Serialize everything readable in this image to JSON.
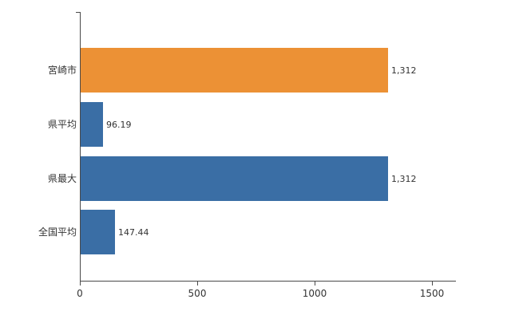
{
  "chart_data": {
    "type": "bar",
    "orientation": "horizontal",
    "title": "",
    "xlabel": "",
    "ylabel": "",
    "categories": [
      "宮崎市",
      "県平均",
      "県最大",
      "全国平均"
    ],
    "values": [
      1312,
      96.19,
      1312,
      147.44
    ],
    "value_labels": [
      "1,312",
      "96.19",
      "1,312",
      "147.44"
    ],
    "bar_colors": [
      "#EC9135",
      "#3A6EA5",
      "#3A6EA5",
      "#3A6EA5"
    ],
    "xlim": [
      0,
      1600
    ],
    "x_ticks": [
      0,
      500,
      1000,
      1500
    ],
    "x_tick_labels": [
      "0",
      "500",
      "1000",
      "1500"
    ],
    "grid": false,
    "legend_position": "none"
  },
  "colors": {
    "axis": "#4a4a4a",
    "text": "#333333",
    "background": "#ffffff"
  }
}
